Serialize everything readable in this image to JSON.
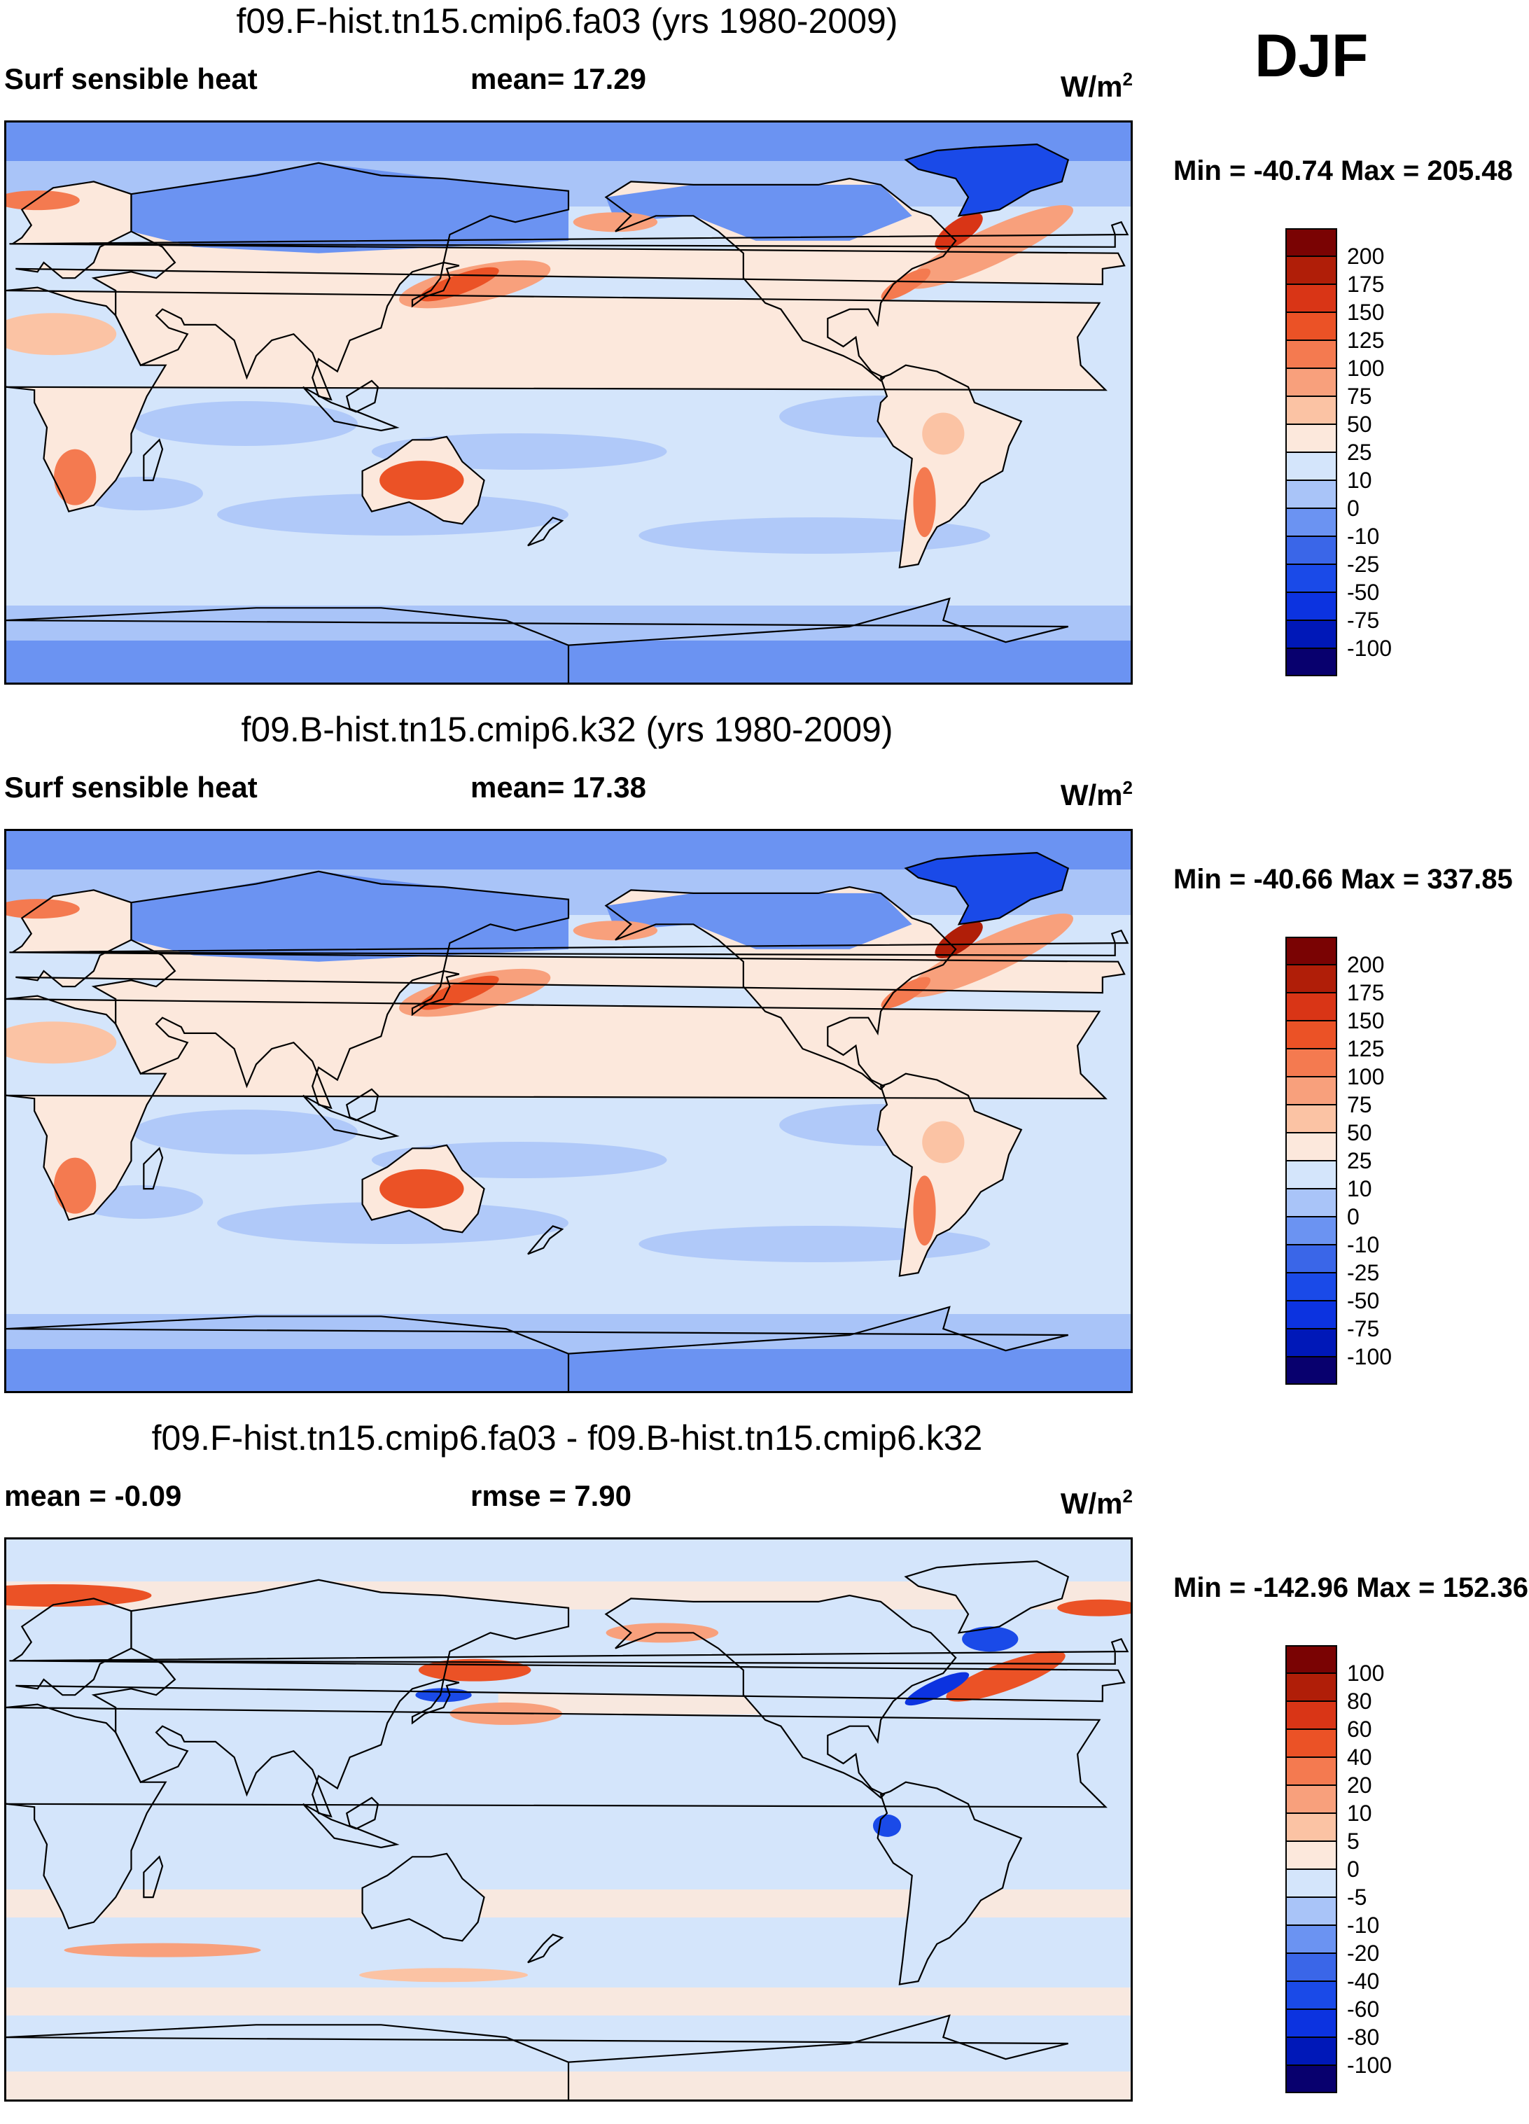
{
  "season_label": "DJF",
  "colors": {
    "abs_scale": [
      "#08006e",
      "#0018b8",
      "#0c33e0",
      "#1a4ae8",
      "#3a66e8",
      "#6b93f2",
      "#a9c4f8",
      "#d4e5fb",
      "#fce8dc",
      "#fbc3a4",
      "#f8a07c",
      "#f47a50",
      "#eb5226",
      "#d93516",
      "#b01e08",
      "#7a0303"
    ],
    "diff_scale": [
      "#08006e",
      "#0018b8",
      "#0c33e0",
      "#1a4ae8",
      "#3a66e8",
      "#6b93f2",
      "#a9c4f8",
      "#d4e5fb",
      "#fce8dc",
      "#fbc3a4",
      "#f8a07c",
      "#f47a50",
      "#eb5226",
      "#d93516",
      "#b01e08",
      "#7a0303"
    ],
    "ocean_base": "#d4e5fb",
    "high_lat_base": "#6b93f2"
  },
  "panels": [
    {
      "title": "f09.F-hist.tn15.cmip6.fa03 (yrs 1980-2009)",
      "left_label": "Surf sensible heat",
      "mid_label": "mean=  17.29",
      "units_base": "W/m",
      "units_sup": "2",
      "minmax": "Min = -40.74 Max = 205.48",
      "colorbar_labels": [
        "200",
        "175",
        "150",
        "125",
        "100",
        "75",
        "50",
        "25",
        "10",
        "0",
        "-10",
        "-25",
        "-50",
        "-75",
        "-100"
      ]
    },
    {
      "title": "f09.B-hist.tn15.cmip6.k32 (yrs 1980-2009)",
      "left_label": "Surf sensible heat",
      "mid_label": "mean=  17.38",
      "units_base": "W/m",
      "units_sup": "2",
      "minmax": "Min = -40.66 Max = 337.85",
      "colorbar_labels": [
        "200",
        "175",
        "150",
        "125",
        "100",
        "75",
        "50",
        "25",
        "10",
        "0",
        "-10",
        "-25",
        "-50",
        "-75",
        "-100"
      ]
    },
    {
      "title": "f09.F-hist.tn15.cmip6.fa03 - f09.B-hist.tn15.cmip6.k32",
      "left_label": "mean =  -0.09",
      "mid_label": "rmse =    7.90",
      "units_base": "W/m",
      "units_sup": "2",
      "minmax": "Min = -142.96 Max = 152.36",
      "colorbar_labels": [
        "100",
        "80",
        "60",
        "40",
        "20",
        "10",
        "5",
        "0",
        "-5",
        "-10",
        "-20",
        "-40",
        "-60",
        "-80",
        "-100"
      ]
    }
  ]
}
